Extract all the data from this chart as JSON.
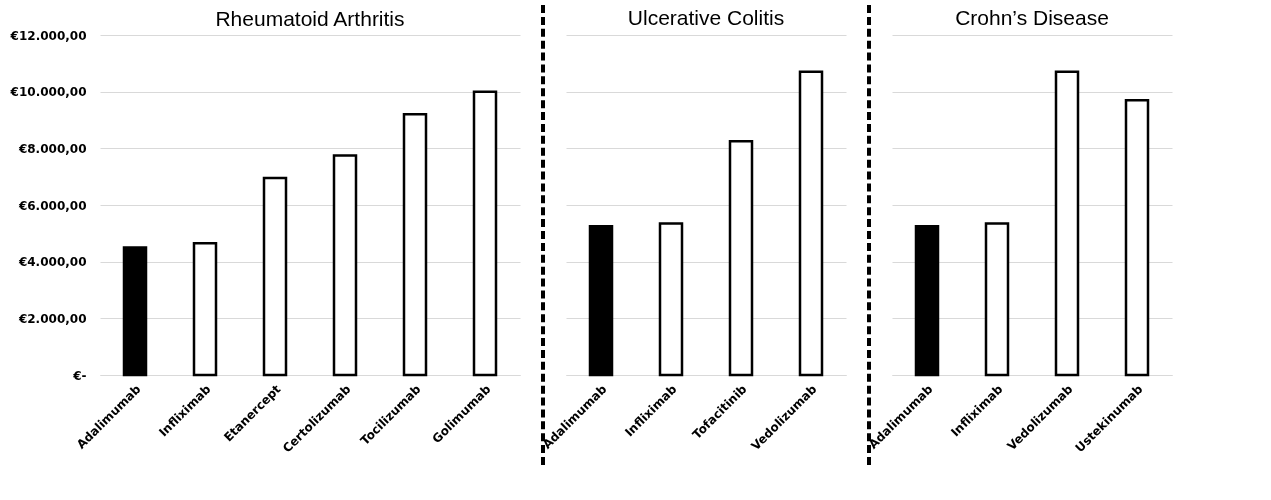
{
  "chart_data": [
    {
      "type": "bar",
      "title": "Rheumatoid Arthritis",
      "categories": [
        "Adalimumab",
        "Infliximab",
        "Etanercept",
        "Certolizumab",
        "Tocilizumab",
        "Golimumab"
      ],
      "values": [
        4500,
        4650,
        6950,
        7750,
        9200,
        10000
      ],
      "colors": [
        "#000000",
        "#ffffff",
        "#ffffff",
        "#ffffff",
        "#ffffff",
        "#ffffff"
      ],
      "ylim": [
        0,
        12000
      ],
      "yticks": [
        {
          "value": 0,
          "label": "€-"
        },
        {
          "value": 2000,
          "label": "€2.000,00"
        },
        {
          "value": 4000,
          "label": "€4.000,00"
        },
        {
          "value": 6000,
          "label": "€6.000,00"
        },
        {
          "value": 8000,
          "label": "€8.000,00"
        },
        {
          "value": 10000,
          "label": "€10.000,00"
        },
        {
          "value": 12000,
          "label": "€12.000,00"
        }
      ],
      "grid": "y"
    },
    {
      "type": "bar",
      "title": "Ulcerative Colitis",
      "categories": [
        "Adalimumab",
        "Infliximab",
        "Tofacitinib",
        "Vedolizumab"
      ],
      "values": [
        5250,
        5350,
        8250,
        10700
      ],
      "colors": [
        "#000000",
        "#ffffff",
        "#ffffff",
        "#ffffff"
      ],
      "ylim": [
        0,
        12000
      ],
      "yticks": [
        {
          "value": 0,
          "label": null
        },
        {
          "value": 2000,
          "label": null
        },
        {
          "value": 4000,
          "label": null
        },
        {
          "value": 6000,
          "label": null
        },
        {
          "value": 8000,
          "label": null
        },
        {
          "value": 10000,
          "label": null
        },
        {
          "value": 12000,
          "label": null
        }
      ],
      "grid": "y",
      "tick_labels": "x"
    },
    {
      "type": "bar",
      "title": "Crohn’s Disease",
      "categories": [
        "Adalimumab",
        "Infliximab",
        "Vedolizumab",
        "Ustekinumab"
      ],
      "values": [
        5250,
        5350,
        10700,
        9700
      ],
      "colors": [
        "#000000",
        "#ffffff",
        "#ffffff",
        "#ffffff"
      ],
      "ylim": [
        0,
        12000
      ],
      "yticks": [
        {
          "value": 0,
          "label": null
        },
        {
          "value": 2000,
          "label": null
        },
        {
          "value": 4000,
          "label": null
        },
        {
          "value": 6000,
          "label": null
        },
        {
          "value": 8000,
          "label": null
        },
        {
          "value": 10000,
          "label": null
        },
        {
          "value": 12000,
          "label": null
        }
      ],
      "grid": "y",
      "tick_labels": "x"
    }
  ]
}
